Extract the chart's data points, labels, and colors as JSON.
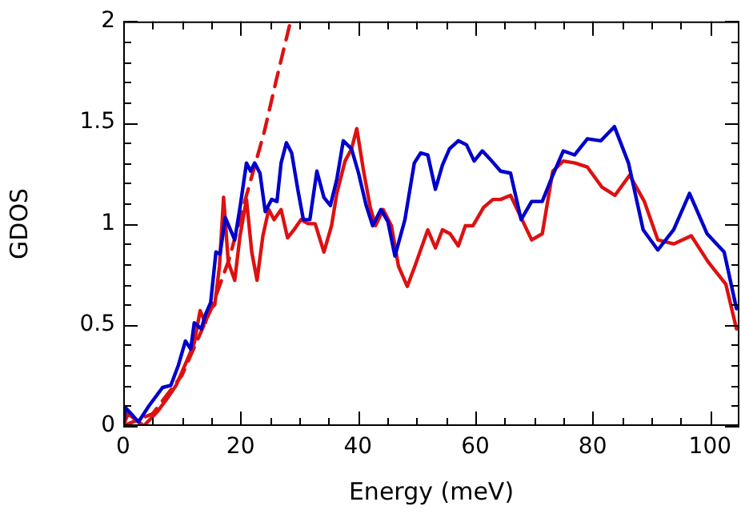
{
  "chart_data": {
    "type": "line",
    "xlabel": "Energy (meV)",
    "ylabel": "GDOS",
    "xlim": [
      0,
      105
    ],
    "ylim": [
      0,
      2
    ],
    "xticks": [
      0,
      {
        "value": 5,
        "label": null
      },
      {
        "value": 10,
        "label": null
      },
      {
        "value": 15,
        "label": null
      },
      20,
      {
        "value": 25,
        "label": null
      },
      {
        "value": 30,
        "label": null
      },
      {
        "value": 35,
        "label": null
      },
      40,
      {
        "value": 45,
        "label": null
      },
      {
        "value": 50,
        "label": null
      },
      {
        "value": 55,
        "label": null
      },
      60,
      {
        "value": 65,
        "label": null
      },
      {
        "value": 70,
        "label": null
      },
      {
        "value": 75,
        "label": null
      },
      80,
      {
        "value": 85,
        "label": null
      },
      {
        "value": 90,
        "label": null
      },
      {
        "value": 95,
        "label": null
      },
      100
    ],
    "yticks": [
      0,
      {
        "value": 0.1,
        "label": null
      },
      {
        "value": 0.2,
        "label": null
      },
      {
        "value": 0.3,
        "label": null
      },
      {
        "value": 0.4,
        "label": null
      },
      0.5,
      {
        "value": 0.6,
        "label": null
      },
      {
        "value": 0.7,
        "label": null
      },
      {
        "value": 0.8,
        "label": null
      },
      {
        "value": 0.9,
        "label": null
      },
      1,
      {
        "value": 1.1,
        "label": null
      },
      {
        "value": 1.2,
        "label": null
      },
      {
        "value": 1.3,
        "label": null
      },
      {
        "value": 1.4,
        "label": null
      },
      1.5,
      {
        "value": 1.6,
        "label": null
      },
      {
        "value": 1.7,
        "label": null
      },
      {
        "value": 1.8,
        "label": null
      },
      {
        "value": 1.9,
        "label": null
      },
      2
    ],
    "grid": false,
    "legend": false,
    "marker": "none",
    "series": [
      {
        "color": "#0000cc",
        "line_style": "solid",
        "x": [
          0,
          0.4,
          2.6,
          4.4,
          6.7,
          8.1,
          9.4,
          10.6,
          11.5,
          12.1,
          13.3,
          14,
          14.9,
          15.8,
          16.5,
          17.4,
          19,
          19.9,
          21,
          21.7,
          22.4,
          23.3,
          24.2,
          25.3,
          26.2,
          26.9,
          27.8,
          28.7,
          29.8,
          30.7,
          31.8,
          33,
          34.2,
          35.3,
          36.4,
          37.5,
          38.9,
          40.1,
          41.4,
          42.5,
          43.9,
          45.1,
          46.3,
          48,
          49.6,
          50.7,
          51.9,
          53.2,
          54.4,
          55.6,
          57.1,
          58.5,
          59.8,
          61.2,
          62.8,
          64.3,
          66,
          67.8,
          69.6,
          71.4,
          73.2,
          75,
          76.9,
          79.1,
          81.4,
          83.7,
          86.1,
          88.6,
          91.1,
          93.8,
          96.5,
          99.5,
          102.4,
          104.5
        ],
        "values": [
          0,
          0.09,
          0.02,
          0.1,
          0.19,
          0.2,
          0.3,
          0.42,
          0.38,
          0.51,
          0.48,
          0.55,
          0.61,
          0.86,
          0.85,
          1.03,
          0.92,
          1.08,
          1.3,
          1.26,
          1.3,
          1.25,
          1.06,
          1.12,
          1.11,
          1.3,
          1.4,
          1.35,
          1.16,
          1.02,
          1.02,
          1.26,
          1.13,
          1.09,
          1.22,
          1.41,
          1.37,
          1.25,
          1.09,
          0.99,
          1.07,
          1.01,
          0.84,
          1.02,
          1.3,
          1.35,
          1.34,
          1.17,
          1.29,
          1.37,
          1.41,
          1.39,
          1.31,
          1.36,
          1.31,
          1.26,
          1.25,
          1.02,
          1.11,
          1.11,
          1.24,
          1.36,
          1.34,
          1.42,
          1.41,
          1.48,
          1.3,
          0.97,
          0.87,
          0.97,
          1.15,
          0.95,
          0.86,
          0.58
        ]
      },
      {
        "color": "#dd1111",
        "line_style": "solid",
        "x": [
          0,
          0.8,
          3.5,
          5.8,
          7.6,
          9,
          9.9,
          11.1,
          12.1,
          13.1,
          14,
          14.6,
          15.6,
          16.4,
          17.1,
          17.9,
          19,
          19.9,
          21,
          21.9,
          22.8,
          23.8,
          24.8,
          25.7,
          26.9,
          28,
          29.1,
          30.3,
          31.5,
          32.7,
          34.2,
          35.5,
          36.4,
          37.8,
          38.9,
          39.8,
          40.9,
          42.1,
          43,
          44.3,
          45.7,
          46.9,
          48.4,
          49.7,
          51.9,
          53.2,
          54.4,
          55.7,
          57.1,
          58.3,
          59.6,
          61.4,
          63,
          64.3,
          66,
          67.8,
          69.6,
          71.4,
          73.2,
          75,
          77,
          79.1,
          81.6,
          83.8,
          86.3,
          88.8,
          91.1,
          93.8,
          96.8,
          99.7,
          102.7,
          104.5
        ],
        "values": [
          0,
          0.06,
          0,
          0.07,
          0.14,
          0.2,
          0.26,
          0.34,
          0.41,
          0.57,
          0.51,
          0.57,
          0.6,
          0.79,
          1.13,
          0.81,
          0.72,
          0.94,
          1.12,
          0.86,
          0.72,
          0.94,
          1.07,
          1.02,
          1.07,
          0.93,
          0.97,
          1.02,
          1,
          1,
          0.86,
          0.99,
          1.15,
          1.31,
          1.37,
          1.47,
          1.27,
          1.08,
          0.99,
          1.07,
          0.99,
          0.79,
          0.69,
          0.79,
          0.97,
          0.88,
          0.97,
          0.95,
          0.89,
          0.99,
          0.99,
          1.08,
          1.12,
          1.12,
          1.14,
          1.03,
          0.92,
          0.95,
          1.26,
          1.31,
          1.3,
          1.28,
          1.18,
          1.14,
          1.24,
          1.11,
          0.92,
          0.9,
          0.94,
          0.81,
          0.7,
          0.48
        ]
      },
      {
        "color": "#dd1111",
        "line_style": "dashed",
        "x": [
          0,
          5,
          10,
          15,
          18,
          21,
          24,
          26,
          28.5
        ],
        "values": [
          0,
          0.06,
          0.25,
          0.58,
          0.82,
          1.14,
          1.45,
          1.7,
          2
        ]
      }
    ]
  }
}
